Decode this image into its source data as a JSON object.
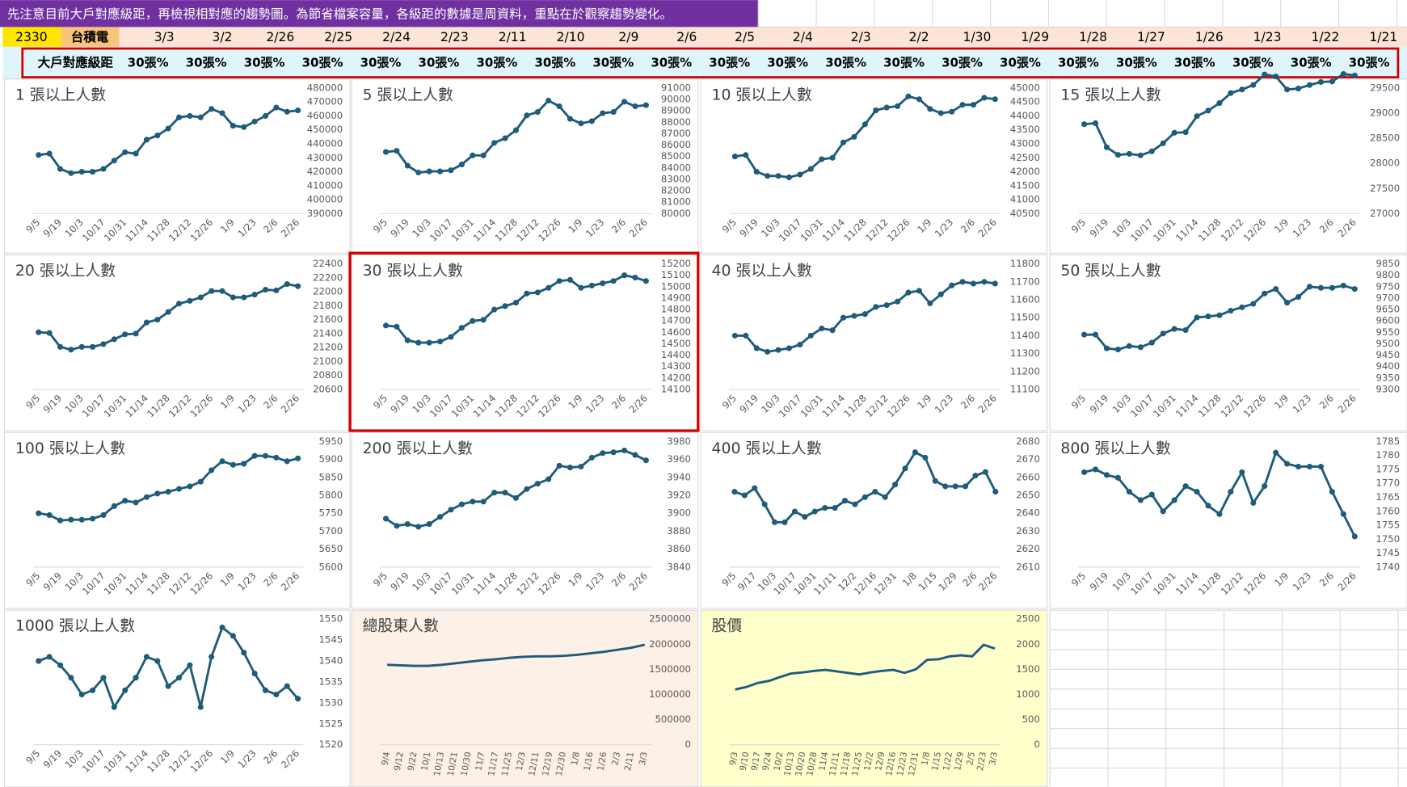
{
  "header": {
    "banner": "先注意目前大戶對應級距，再檢視相對應的趨勢圖。為節省檔案容量，各級距的數據是周資料，重點在於觀察趨勢變化。",
    "ticker": "2330",
    "name": "台積電",
    "dates": [
      "3/3",
      "3/2",
      "2/26",
      "2/25",
      "2/24",
      "2/23",
      "2/11",
      "2/10",
      "2/9",
      "2/6",
      "2/5",
      "2/4",
      "2/3",
      "2/2",
      "1/30",
      "1/29",
      "1/28",
      "1/27",
      "1/26",
      "1/23",
      "1/22",
      "1/21"
    ],
    "row_label": "大戶對應級距",
    "levels": [
      "30張%",
      "30張%",
      "30張%",
      "30張%",
      "30張%",
      "30張%",
      "30張%",
      "30張%",
      "30張%",
      "30張%",
      "30張%",
      "30張%",
      "30張%",
      "30張%",
      "30張%",
      "30張%",
      "30張%",
      "30張%",
      "30張%",
      "30張%",
      "30張%",
      "30張%"
    ]
  },
  "chart_data": [
    {
      "type": "line",
      "title": "1 張以上人數",
      "color": "#1f5b7a",
      "markers": true,
      "grid": false,
      "categories": [
        "9/5",
        null,
        "9/19",
        null,
        "10/3",
        null,
        "10/17",
        null,
        "10/31",
        null,
        "11/14",
        null,
        "11/28",
        null,
        "12/12",
        null,
        "12/26",
        null,
        "1/9",
        null,
        "1/23",
        null,
        "2/6",
        null,
        "2/26"
      ],
      "values": [
        432000,
        433000,
        422000,
        419000,
        420000,
        420000,
        422000,
        428000,
        434000,
        433000,
        443000,
        446000,
        451000,
        459000,
        460000,
        459000,
        465000,
        462000,
        453000,
        452000,
        456000,
        460000,
        466000,
        463000,
        464000
      ],
      "ylim": [
        390000,
        480000
      ],
      "yticks": [
        390000,
        400000,
        410000,
        420000,
        430000,
        440000,
        450000,
        460000,
        470000,
        480000
      ]
    },
    {
      "type": "line",
      "title": "5 張以上人數",
      "color": "#1f5b7a",
      "markers": true,
      "grid": false,
      "categories": [
        "9/5",
        null,
        "9/19",
        null,
        "10/3",
        null,
        "10/17",
        null,
        "10/31",
        null,
        "11/14",
        null,
        "11/28",
        null,
        "12/12",
        null,
        "12/26",
        null,
        "1/9",
        null,
        "1/23",
        null,
        "2/6",
        null,
        "2/26"
      ],
      "values": [
        85400,
        85500,
        84200,
        83600,
        83700,
        83700,
        83800,
        84300,
        85100,
        85100,
        86200,
        86600,
        87300,
        88600,
        88900,
        89900,
        89400,
        88300,
        87900,
        88100,
        88800,
        88900,
        89800,
        89400,
        89500
      ],
      "ylim": [
        80000,
        91000
      ],
      "yticks": [
        80000,
        81000,
        82000,
        83000,
        84000,
        85000,
        86000,
        87000,
        88000,
        89000,
        90000,
        91000
      ]
    },
    {
      "type": "line",
      "title": "10 張以上人數",
      "color": "#1f5b7a",
      "markers": true,
      "grid": false,
      "categories": [
        "9/5",
        null,
        "9/19",
        null,
        "10/3",
        null,
        "10/17",
        null,
        "10/31",
        null,
        "11/14",
        null,
        "11/28",
        null,
        "12/12",
        null,
        "12/26",
        null,
        "1/9",
        null,
        "1/23",
        null,
        "2/6",
        null,
        "2/26"
      ],
      "values": [
        42550,
        42600,
        42000,
        41850,
        41850,
        41800,
        41900,
        42100,
        42450,
        42500,
        43050,
        43250,
        43700,
        44200,
        44300,
        44350,
        44700,
        44600,
        44250,
        44100,
        44150,
        44400,
        44400,
        44650,
        44600
      ],
      "ylim": [
        40500,
        45000
      ],
      "yticks": [
        40500,
        41000,
        41500,
        42000,
        42500,
        43000,
        43500,
        44000,
        44500,
        45000
      ]
    },
    {
      "type": "line",
      "title": "15 張以上人數",
      "color": "#1f5b7a",
      "markers": true,
      "grid": false,
      "categories": [
        "9/5",
        null,
        "9/19",
        null,
        "10/3",
        null,
        "10/17",
        null,
        "10/31",
        null,
        "11/14",
        null,
        "11/28",
        null,
        "12/12",
        null,
        "12/26",
        null,
        "1/9",
        null,
        "1/23",
        null,
        "2/6",
        null,
        "2/26"
      ],
      "values": [
        28780,
        28800,
        28320,
        28170,
        28190,
        28160,
        28240,
        28400,
        28610,
        28620,
        28940,
        29050,
        29200,
        29400,
        29470,
        29560,
        29770,
        29730,
        29470,
        29490,
        29560,
        29620,
        29630,
        29780,
        29750
      ],
      "ylim": [
        27000,
        29500
      ],
      "yticks": [
        27000,
        27500,
        28000,
        28500,
        29000,
        29500
      ]
    },
    {
      "type": "line",
      "title": "20 張以上人數",
      "color": "#1f5b7a",
      "markers": true,
      "grid": false,
      "categories": [
        "9/5",
        null,
        "9/19",
        null,
        "10/3",
        null,
        "10/17",
        null,
        "10/31",
        null,
        "11/14",
        null,
        "11/28",
        null,
        "12/12",
        null,
        "12/26",
        null,
        "1/9",
        null,
        "1/23",
        null,
        "2/6",
        null,
        "2/26"
      ],
      "values": [
        21420,
        21410,
        21210,
        21170,
        21210,
        21210,
        21250,
        21320,
        21390,
        21400,
        21560,
        21600,
        21710,
        21830,
        21870,
        21920,
        22010,
        22010,
        21920,
        21920,
        21960,
        22030,
        22020,
        22110,
        22080
      ],
      "ylim": [
        20600,
        22400
      ],
      "yticks": [
        20600,
        20800,
        21000,
        21200,
        21400,
        21600,
        21800,
        22000,
        22200,
        22400
      ]
    },
    {
      "type": "line",
      "title": "30 張以上人數",
      "color": "#1f5b7a",
      "markers": true,
      "grid": false,
      "highlighted": true,
      "categories": [
        "9/5",
        null,
        "9/19",
        null,
        "10/3",
        null,
        "10/17",
        null,
        "10/31",
        null,
        "11/14",
        null,
        "11/28",
        null,
        "12/12",
        null,
        "12/26",
        null,
        "1/9",
        null,
        "1/23",
        null,
        "2/6",
        null,
        "2/26"
      ],
      "values": [
        14660,
        14650,
        14530,
        14510,
        14510,
        14520,
        14560,
        14640,
        14700,
        14710,
        14800,
        14830,
        14860,
        14940,
        14950,
        14990,
        15050,
        15060,
        14990,
        15010,
        15030,
        15050,
        15100,
        15080,
        15050
      ],
      "ylim": [
        14100,
        15200
      ],
      "yticks": [
        14100,
        14200,
        14300,
        14400,
        14500,
        14600,
        14700,
        14800,
        14900,
        15000,
        15100,
        15200
      ]
    },
    {
      "type": "line",
      "title": "40 張以上人數",
      "color": "#1f5b7a",
      "markers": true,
      "grid": false,
      "categories": [
        "9/5",
        null,
        "9/19",
        null,
        "10/3",
        null,
        "10/17",
        null,
        "10/31",
        null,
        "11/14",
        null,
        "11/28",
        null,
        "12/12",
        null,
        "12/26",
        null,
        "1/9",
        null,
        "1/23",
        null,
        "2/6",
        null,
        "2/26"
      ],
      "values": [
        11400,
        11400,
        11330,
        11310,
        11320,
        11330,
        11350,
        11400,
        11440,
        11430,
        11500,
        11510,
        11520,
        11560,
        11570,
        11590,
        11640,
        11650,
        11580,
        11630,
        11680,
        11700,
        11690,
        11700,
        11690
      ],
      "ylim": [
        11100,
        11800
      ],
      "yticks": [
        11100,
        11200,
        11300,
        11400,
        11500,
        11600,
        11700,
        11800
      ]
    },
    {
      "type": "line",
      "title": "50 張以上人數",
      "color": "#1f5b7a",
      "markers": true,
      "grid": false,
      "categories": [
        "9/5",
        null,
        "9/19",
        null,
        "10/3",
        null,
        "10/17",
        null,
        "10/31",
        null,
        "11/14",
        null,
        "11/28",
        null,
        "12/12",
        null,
        "12/26",
        null,
        "1/9",
        null,
        "1/23",
        null,
        "2/6",
        null,
        "2/26"
      ],
      "values": [
        9540,
        9540,
        9480,
        9475,
        9490,
        9485,
        9505,
        9545,
        9565,
        9560,
        9615,
        9620,
        9625,
        9645,
        9660,
        9675,
        9720,
        9740,
        9680,
        9705,
        9750,
        9745,
        9745,
        9755,
        9740
      ],
      "ylim": [
        9300,
        9850
      ],
      "yticks": [
        9300,
        9350,
        9400,
        9450,
        9500,
        9550,
        9600,
        9650,
        9700,
        9750,
        9800,
        9850
      ]
    },
    {
      "type": "line",
      "title": "100 張以上人數",
      "color": "#1f5b7a",
      "markers": true,
      "grid": false,
      "categories": [
        "9/5",
        null,
        "9/19",
        null,
        "10/3",
        null,
        "10/17",
        null,
        "10/31",
        null,
        "11/14",
        null,
        "11/28",
        null,
        "12/12",
        null,
        "12/26",
        null,
        "1/9",
        null,
        "1/23",
        null,
        "2/6",
        null,
        "2/26"
      ],
      "values": [
        5750,
        5745,
        5730,
        5732,
        5732,
        5735,
        5745,
        5770,
        5785,
        5780,
        5795,
        5805,
        5810,
        5818,
        5825,
        5838,
        5870,
        5895,
        5885,
        5888,
        5910,
        5910,
        5905,
        5895,
        5903
      ],
      "ylim": [
        5600,
        5950
      ],
      "yticks": [
        5600,
        5650,
        5700,
        5750,
        5800,
        5850,
        5900,
        5950
      ]
    },
    {
      "type": "line",
      "title": "200 張以上人數",
      "color": "#1f5b7a",
      "markers": true,
      "grid": false,
      "categories": [
        "9/5",
        null,
        "9/19",
        null,
        "10/3",
        null,
        "10/17",
        null,
        "10/31",
        null,
        "11/14",
        null,
        "11/28",
        null,
        "12/12",
        null,
        "12/26",
        null,
        "1/9",
        null,
        "1/23",
        null,
        "2/6",
        null,
        "2/26"
      ],
      "values": [
        3894,
        3886,
        3888,
        3885,
        3888,
        3896,
        3904,
        3910,
        3913,
        3913,
        3923,
        3923,
        3917,
        3927,
        3933,
        3938,
        3953,
        3951,
        3952,
        3962,
        3967,
        3968,
        3970,
        3965,
        3959
      ],
      "ylim": [
        3840,
        3980
      ],
      "yticks": [
        3840,
        3860,
        3880,
        3900,
        3920,
        3940,
        3960,
        3980
      ]
    },
    {
      "type": "line",
      "title": "400 張以上人數",
      "color": "#1f5b7a",
      "markers": true,
      "grid": false,
      "categories": [
        "9/5",
        null,
        "9/17",
        null,
        "10/3",
        null,
        "10/17",
        null,
        "10/31",
        null,
        "11/11",
        null,
        "12/2",
        null,
        "12/16",
        null,
        "12/31",
        null,
        "1/8",
        null,
        "1/15",
        null,
        "1/29",
        null,
        "2/6",
        null,
        "2/26"
      ],
      "values": [
        2652,
        2650,
        2654,
        2645,
        2635,
        2635,
        2641,
        2638,
        2641,
        2643,
        2643,
        2647,
        2645,
        2649,
        2652,
        2649,
        2656,
        2665,
        2674,
        2671,
        2658,
        2655,
        2655,
        2655,
        2661,
        2663,
        2652
      ],
      "ylim": [
        2610,
        2680
      ],
      "yticks": [
        2610,
        2620,
        2630,
        2640,
        2650,
        2660,
        2670,
        2680
      ]
    },
    {
      "type": "line",
      "title": "800 張以上人數",
      "color": "#1f5b7a",
      "markers": true,
      "grid": false,
      "categories": [
        "9/5",
        null,
        "9/19",
        null,
        "10/3",
        null,
        "10/17",
        null,
        "10/31",
        null,
        "11/14",
        null,
        "11/28",
        null,
        "12/12",
        null,
        "12/26",
        null,
        "1/9",
        null,
        "1/23",
        null,
        "2/6",
        null,
        "2/26"
      ],
      "values": [
        1774,
        1775,
        1773,
        1772,
        1767,
        1764,
        1766,
        1760,
        1764,
        1769,
        1767,
        1762,
        1759,
        1767,
        1774,
        1763,
        1769,
        1781,
        1777,
        1776,
        1776,
        1776,
        1767,
        1759,
        1751
      ],
      "ylim": [
        1740,
        1785
      ],
      "yticks": [
        1740,
        1745,
        1750,
        1755,
        1760,
        1765,
        1770,
        1775,
        1780,
        1785
      ]
    },
    {
      "type": "line",
      "title": "1000 張以上人數",
      "color": "#1f5b7a",
      "markers": true,
      "grid": false,
      "categories": [
        "9/5",
        null,
        "9/19",
        null,
        "10/3",
        null,
        "10/17",
        null,
        "10/31",
        null,
        "11/14",
        null,
        "11/28",
        null,
        "12/12",
        null,
        "12/26",
        null,
        "1/9",
        null,
        "1/23",
        null,
        "2/6",
        null,
        "2/26"
      ],
      "values": [
        1540,
        1541,
        1539,
        1536,
        1532,
        1533,
        1536,
        1529,
        1533,
        1536,
        1541,
        1540,
        1534,
        1536,
        1539,
        1529,
        1541,
        1548,
        1546,
        1542,
        1537,
        1533,
        1532,
        1534,
        1531
      ],
      "ylim": [
        1520,
        1550
      ],
      "yticks": [
        1520,
        1525,
        1530,
        1535,
        1540,
        1545,
        1550
      ]
    },
    {
      "type": "line",
      "title": "總股東人數",
      "color": "#1f5b7a",
      "markers": false,
      "grid": false,
      "background": "#fdf0e6",
      "categories": [
        "9/4",
        "9/12",
        "9/22",
        "10/1",
        "10/13",
        "10/21",
        "10/30",
        "11/7",
        "11/17",
        "11/25",
        "12/3",
        "12/11",
        "12/19",
        "12/30",
        "1/8",
        "1/16",
        "1/26",
        "2/3",
        "2/11",
        "3/3"
      ],
      "values": [
        1590000,
        1580000,
        1570000,
        1570000,
        1590000,
        1620000,
        1650000,
        1680000,
        1700000,
        1730000,
        1750000,
        1760000,
        1760000,
        1770000,
        1790000,
        1820000,
        1850000,
        1890000,
        1930000,
        1990000
      ],
      "ylim": [
        0,
        2500000
      ],
      "yticks": [
        0,
        500000,
        1000000,
        1500000,
        2000000,
        2500000
      ]
    },
    {
      "type": "line",
      "title": "股價",
      "color": "#1f5b7a",
      "markers": false,
      "grid": false,
      "background": "#ffffcc",
      "categories": [
        "9/3",
        "9/10",
        "9/17",
        "9/24",
        "10/2",
        "10/13",
        "10/20",
        "10/28",
        "11/4",
        "11/11",
        "11/18",
        "11/25",
        "12/2",
        "12/9",
        "12/16",
        "12/23",
        "12/31",
        "1/8",
        "1/15",
        "1/22",
        "1/29",
        "2/5",
        "2/23",
        "3/3"
      ],
      "values": [
        1100,
        1150,
        1230,
        1270,
        1350,
        1420,
        1440,
        1470,
        1490,
        1460,
        1430,
        1400,
        1440,
        1470,
        1490,
        1430,
        1500,
        1690,
        1700,
        1760,
        1780,
        1760,
        1990,
        1915
      ],
      "ylim": [
        0,
        2500
      ],
      "yticks": [
        0,
        500,
        1000,
        1500,
        2000,
        2500
      ]
    }
  ]
}
